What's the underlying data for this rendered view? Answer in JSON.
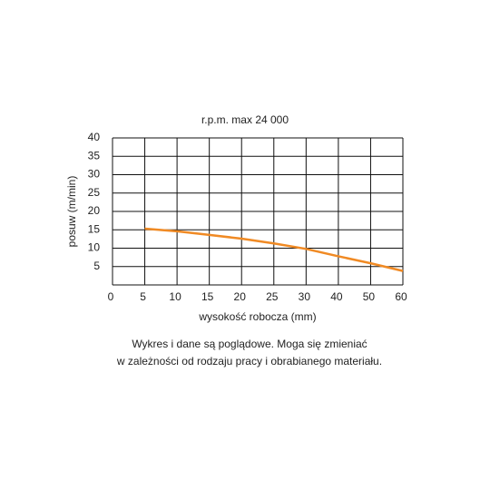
{
  "chart_data": {
    "type": "line",
    "title": "r.p.m. max 24 000",
    "x_label": "wysokość robocza (mm)",
    "y_label": "posuw (m/min)",
    "categories": [
      "0",
      "5",
      "10",
      "15",
      "20",
      "25",
      "30",
      "40",
      "50",
      "60"
    ],
    "series": [
      {
        "name": "posuw",
        "color": "#f08a24",
        "values": [
          null,
          15.3,
          14.6,
          13.6,
          12.6,
          11.3,
          9.8,
          7.8,
          5.9,
          3.8
        ]
      }
    ],
    "ylim": [
      0,
      40
    ],
    "yticks": [
      5,
      10,
      15,
      20,
      25,
      30,
      35,
      40
    ],
    "grid": true,
    "note": [
      "Wykres i dane są poglądowe. Moga się zmieniać",
      "w zależności od rodzaju pracy i obrabianego materiału."
    ]
  }
}
